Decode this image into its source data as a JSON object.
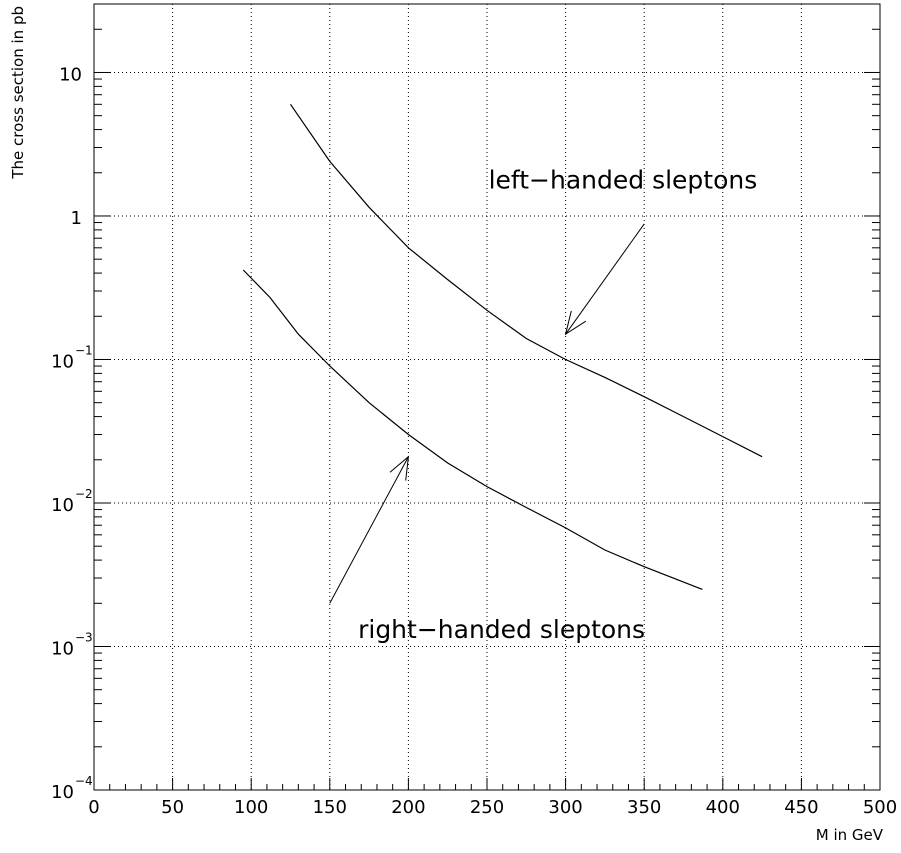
{
  "chart_data": {
    "type": "line",
    "title": "",
    "xlabel": "M in GeV",
    "ylabel": "The cross section in pb",
    "xlim": [
      0,
      500
    ],
    "ylim": [
      0.0001,
      30
    ],
    "yscale": "log",
    "grid": true,
    "x_ticks": [
      {
        "value": 0,
        "label": "0"
      },
      {
        "value": 50,
        "label": "50"
      },
      {
        "value": 100,
        "label": "100"
      },
      {
        "value": 150,
        "label": "150"
      },
      {
        "value": 200,
        "label": "200"
      },
      {
        "value": 250,
        "label": "250"
      },
      {
        "value": 300,
        "label": "300"
      },
      {
        "value": 350,
        "label": "350"
      },
      {
        "value": 400,
        "label": "400"
      },
      {
        "value": 450,
        "label": "450"
      },
      {
        "value": 500,
        "label": "500"
      }
    ],
    "y_ticks": [
      {
        "value": 10,
        "label": "10",
        "exponent": ""
      },
      {
        "value": 1,
        "label": "1",
        "exponent": ""
      },
      {
        "value": 0.1,
        "label": "10",
        "exponent": "−1"
      },
      {
        "value": 0.01,
        "label": "10",
        "exponent": "−2"
      },
      {
        "value": 0.001,
        "label": "10",
        "exponent": "−3"
      },
      {
        "value": 0.0001,
        "label": "10",
        "exponent": "−4"
      }
    ],
    "series": [
      {
        "x": [
          125,
          150,
          175,
          200,
          225,
          250,
          275,
          300,
          325,
          350,
          375,
          400,
          425
        ],
        "values": [
          6.0,
          2.4,
          1.15,
          0.6,
          0.36,
          0.22,
          0.14,
          0.1,
          0.075,
          0.055,
          0.04,
          0.029,
          0.021
        ]
      },
      {
        "x": [
          95,
          112,
          130,
          150,
          175,
          200,
          225,
          250,
          275,
          300,
          325,
          350,
          387
        ],
        "values": [
          0.42,
          0.27,
          0.15,
          0.09,
          0.05,
          0.03,
          0.019,
          0.013,
          0.0093,
          0.0067,
          0.0047,
          0.0036,
          0.0025
        ]
      }
    ],
    "annotations": [
      {
        "text": "left−handed sleptons",
        "text_at": [
          251,
          1.55
        ],
        "arrow_from": [
          350,
          0.88
        ],
        "arrow_to": [
          300,
          0.15
        ]
      },
      {
        "text": "right−handed sleptons",
        "text_at": [
          168,
          0.00115
        ],
        "arrow_from": [
          150,
          0.002
        ],
        "arrow_to": [
          200,
          0.021
        ]
      }
    ]
  }
}
